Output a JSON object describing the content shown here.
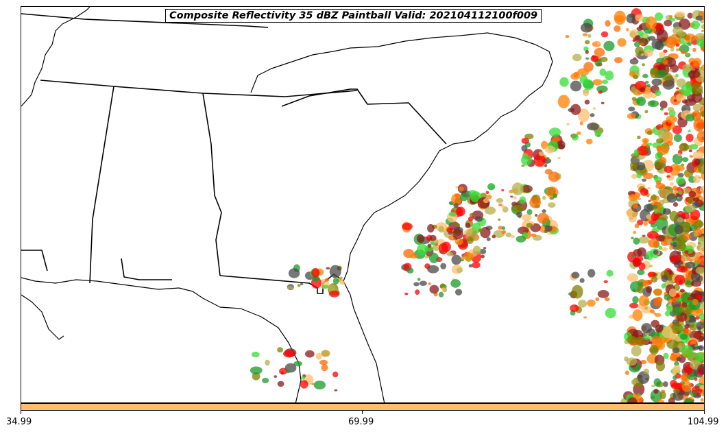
{
  "title": "Composite Reflectivity 35 dBZ Paintball Valid: 202104112100f009",
  "colors": {
    "colorbar": "#fdbf6f",
    "members": [
      "#ff0000",
      "#ff7f00",
      "#33dd33",
      "#808000",
      "#4a4a4a",
      "#8b1a1a",
      "#1a9a2a",
      "#fdbf6f",
      "#b5b04a",
      "#ff6a00"
    ]
  },
  "chart_data": {
    "type": "paintball map",
    "title": "Composite Reflectivity 35 dBZ Paintball Valid: 202104112100f009",
    "colorbar": {
      "color": "#fdbf6f",
      "ticks": [
        "34.99",
        "69.99",
        "104.99"
      ]
    },
    "basemap": "Southeastern United States coastline and state borders",
    "grid": false
  }
}
